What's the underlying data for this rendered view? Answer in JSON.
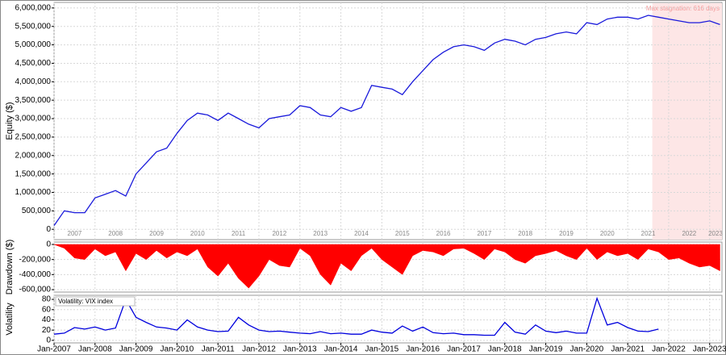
{
  "chart_data": [
    {
      "type": "line",
      "ylabel": "Equity ($)",
      "x": [
        2007.0,
        2007.25,
        2007.5,
        2007.75,
        2008.0,
        2008.25,
        2008.5,
        2008.75,
        2009.0,
        2009.25,
        2009.5,
        2009.75,
        2010.0,
        2010.25,
        2010.5,
        2010.75,
        2011.0,
        2011.25,
        2011.5,
        2011.75,
        2012.0,
        2012.25,
        2012.5,
        2012.75,
        2013.0,
        2013.25,
        2013.5,
        2013.75,
        2014.0,
        2014.25,
        2014.5,
        2014.75,
        2015.0,
        2015.25,
        2015.5,
        2015.75,
        2016.0,
        2016.25,
        2016.5,
        2016.75,
        2017.0,
        2017.25,
        2017.5,
        2017.75,
        2018.0,
        2018.25,
        2018.5,
        2018.75,
        2019.0,
        2019.25,
        2019.5,
        2019.75,
        2020.0,
        2020.25,
        2020.5,
        2020.75,
        2021.0,
        2021.25,
        2021.5,
        2021.75,
        2022.0,
        2022.25,
        2022.5,
        2022.75,
        2023.0,
        2023.25
      ],
      "series": [
        {
          "color": "#1a1adb",
          "values": [
            100000,
            500000,
            450000,
            450000,
            850000,
            950000,
            1050000,
            900000,
            1500000,
            1800000,
            2100000,
            2200000,
            2600000,
            2950000,
            3150000,
            3100000,
            2950000,
            3150000,
            3000000,
            2850000,
            2750000,
            3000000,
            3050000,
            3100000,
            3350000,
            3300000,
            3100000,
            3050000,
            3300000,
            3200000,
            3300000,
            3900000,
            3850000,
            3800000,
            3650000,
            4000000,
            4300000,
            4600000,
            4800000,
            4950000,
            5000000,
            4950000,
            4850000,
            5050000,
            5150000,
            5100000,
            5000000,
            5150000,
            5200000,
            5300000,
            5350000,
            5300000,
            5600000,
            5550000,
            5700000,
            5750000,
            5750000,
            5700000,
            5800000,
            5750000,
            5700000,
            5650000,
            5600000,
            5600000,
            5650000,
            5550000
          ]
        }
      ],
      "xlim": [
        2007,
        2023.3
      ],
      "ylim": [
        -280000,
        6150000
      ],
      "yticks": [
        0,
        {
          "value": 500000,
          "label": "500,000"
        },
        {
          "value": 1000000,
          "label": "1,000,000"
        },
        {
          "value": 1500000,
          "label": "1,500,000"
        },
        {
          "value": 2000000,
          "label": "2,000,000"
        },
        {
          "value": 2500000,
          "label": "2,500,000"
        },
        {
          "value": 3000000,
          "label": "3,000,000"
        },
        {
          "value": 3500000,
          "label": "3,500,000"
        },
        {
          "value": 4000000,
          "label": "4,000,000"
        },
        {
          "value": 4500000,
          "label": "4,500,000"
        },
        {
          "value": 5000000,
          "label": "5,000,000"
        },
        {
          "value": 5500000,
          "label": "5,500,000"
        },
        {
          "value": 6000000,
          "label": "6,000,000"
        }
      ],
      "year_labels": [
        "2007",
        "2008",
        "2009",
        "2010",
        "2011",
        "2012",
        "2013",
        "2014",
        "2015",
        "2016",
        "2017",
        "2018",
        "2019",
        "2020",
        "2021",
        "2022",
        "2023"
      ],
      "stagnation": {
        "label": "Max stagnation: 616 days",
        "start": 2021.6,
        "end": 2023.3
      },
      "grid": true
    },
    {
      "type": "area",
      "ylabel": "Drawdown ($)",
      "x": [
        2007.0,
        2007.25,
        2007.5,
        2007.75,
        2008.0,
        2008.25,
        2008.5,
        2008.75,
        2009.0,
        2009.25,
        2009.5,
        2009.75,
        2010.0,
        2010.25,
        2010.5,
        2010.75,
        2011.0,
        2011.25,
        2011.5,
        2011.75,
        2012.0,
        2012.25,
        2012.5,
        2012.75,
        2013.0,
        2013.25,
        2013.5,
        2013.75,
        2014.0,
        2014.25,
        2014.5,
        2014.75,
        2015.0,
        2015.25,
        2015.5,
        2015.75,
        2016.0,
        2016.25,
        2016.5,
        2016.75,
        2017.0,
        2017.25,
        2017.5,
        2017.75,
        2018.0,
        2018.25,
        2018.5,
        2018.75,
        2019.0,
        2019.25,
        2019.5,
        2019.75,
        2020.0,
        2020.25,
        2020.5,
        2020.75,
        2021.0,
        2021.25,
        2021.5,
        2021.75,
        2022.0,
        2022.25,
        2022.5,
        2022.75,
        2023.0,
        2023.25
      ],
      "series": [
        {
          "color": "#ff0000",
          "values": [
            0,
            -50000,
            -180000,
            -200000,
            -60000,
            -150000,
            -100000,
            -350000,
            -120000,
            -200000,
            -80000,
            -180000,
            -100000,
            -150000,
            -60000,
            -300000,
            -420000,
            -250000,
            -450000,
            -580000,
            -420000,
            -200000,
            -280000,
            -300000,
            -50000,
            -150000,
            -400000,
            -540000,
            -250000,
            -350000,
            -150000,
            -50000,
            -200000,
            -300000,
            -400000,
            -150000,
            -80000,
            -100000,
            -150000,
            -60000,
            -50000,
            -120000,
            -200000,
            -60000,
            -100000,
            -200000,
            -250000,
            -150000,
            -120000,
            -80000,
            -150000,
            -200000,
            -50000,
            -200000,
            -100000,
            -150000,
            -120000,
            -200000,
            -60000,
            -100000,
            -200000,
            -180000,
            -250000,
            -300000,
            -280000,
            -350000
          ]
        }
      ],
      "xlim": [
        2007,
        2023.3
      ],
      "ylim": [
        -632000,
        32000
      ],
      "yticks": [
        0,
        {
          "value": -200000,
          "label": "-200,000"
        },
        {
          "value": -400000,
          "label": "-400,000"
        },
        {
          "value": -600000,
          "label": "-600,000"
        }
      ]
    },
    {
      "type": "line",
      "ylabel": "Volatility",
      "x": [
        2007.0,
        2007.25,
        2007.5,
        2007.75,
        2008.0,
        2008.25,
        2008.5,
        2008.75,
        2009.0,
        2009.25,
        2009.5,
        2009.75,
        2010.0,
        2010.25,
        2010.5,
        2010.75,
        2011.0,
        2011.25,
        2011.5,
        2011.75,
        2012.0,
        2012.25,
        2012.5,
        2012.75,
        2013.0,
        2013.25,
        2013.5,
        2013.75,
        2014.0,
        2014.25,
        2014.5,
        2014.75,
        2015.0,
        2015.25,
        2015.5,
        2015.75,
        2016.0,
        2016.25,
        2016.5,
        2016.75,
        2017.0,
        2017.25,
        2017.5,
        2017.75,
        2018.0,
        2018.25,
        2018.5,
        2018.75,
        2019.0,
        2019.25,
        2019.5,
        2019.75,
        2020.0,
        2020.25,
        2020.5,
        2020.75,
        2021.0,
        2021.25,
        2021.5,
        2021.75,
        2022.0,
        2022.25,
        2022.5,
        2022.75,
        2023.0,
        2023.25
      ],
      "series": [
        {
          "name": "Volatility: VIX index",
          "color": "#0000dd",
          "values": [
            12,
            14,
            25,
            22,
            26,
            20,
            24,
            80,
            45,
            35,
            26,
            24,
            20,
            40,
            26,
            20,
            17,
            18,
            45,
            30,
            20,
            17,
            18,
            16,
            14,
            13,
            17,
            13,
            14,
            12,
            12,
            20,
            16,
            14,
            28,
            18,
            26,
            15,
            13,
            14,
            11,
            11,
            10,
            10,
            35,
            16,
            12,
            30,
            18,
            15,
            18,
            14,
            14,
            82,
            30,
            35,
            25,
            18,
            17,
            22,
            null,
            null,
            null,
            null,
            null,
            null
          ]
        }
      ],
      "xlim": [
        2007,
        2023.3
      ],
      "ylim": [
        -5,
        88
      ],
      "yticks": [
        0,
        20,
        40,
        60,
        80
      ],
      "xticks": [
        {
          "value": 2007,
          "label": "Jan-2007"
        },
        {
          "value": 2008,
          "label": "Jan-2008"
        },
        {
          "value": 2009,
          "label": "Jan-2009"
        },
        {
          "value": 2010,
          "label": "Jan-2010"
        },
        {
          "value": 2011,
          "label": "Jan-2011"
        },
        {
          "value": 2012,
          "label": "Jan-2012"
        },
        {
          "value": 2013,
          "label": "Jan-2013"
        },
        {
          "value": 2014,
          "label": "Jan-2014"
        },
        {
          "value": 2015,
          "label": "Jan-2015"
        },
        {
          "value": 2016,
          "label": "Jan-2016"
        },
        {
          "value": 2017,
          "label": "Jan-2017"
        },
        {
          "value": 2018,
          "label": "Jan-2018"
        },
        {
          "value": 2019,
          "label": "Jan-2019"
        },
        {
          "value": 2020,
          "label": "Jan-2020"
        },
        {
          "value": 2021,
          "label": "Jan-2021"
        },
        {
          "value": 2022,
          "label": "Jan-2022"
        },
        {
          "value": 2023,
          "label": "Jan-2023"
        }
      ]
    }
  ]
}
